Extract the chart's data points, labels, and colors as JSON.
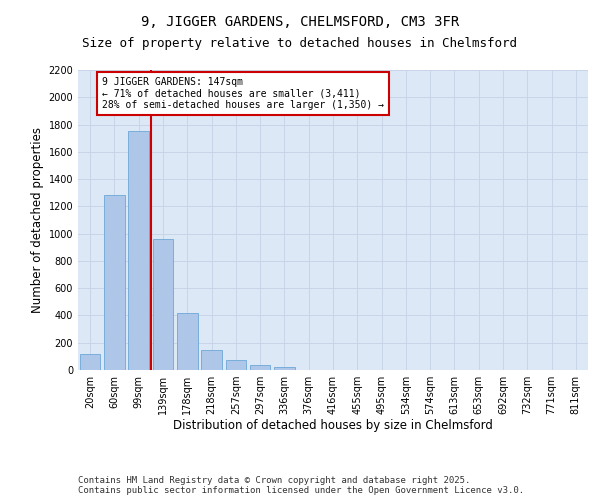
{
  "title_line1": "9, JIGGER GARDENS, CHELMSFORD, CM3 3FR",
  "title_line2": "Size of property relative to detached houses in Chelmsford",
  "xlabel": "Distribution of detached houses by size in Chelmsford",
  "ylabel": "Number of detached properties",
  "categories": [
    "20sqm",
    "60sqm",
    "99sqm",
    "139sqm",
    "178sqm",
    "218sqm",
    "257sqm",
    "297sqm",
    "336sqm",
    "376sqm",
    "416sqm",
    "455sqm",
    "495sqm",
    "534sqm",
    "574sqm",
    "613sqm",
    "653sqm",
    "692sqm",
    "732sqm",
    "771sqm",
    "811sqm"
  ],
  "values": [
    120,
    1280,
    1750,
    960,
    415,
    150,
    75,
    35,
    20,
    0,
    0,
    0,
    0,
    0,
    0,
    0,
    0,
    0,
    0,
    0,
    0
  ],
  "bar_color": "#aec6e8",
  "bar_edge_color": "#5a9fd4",
  "grid_color": "#c8d4e8",
  "background_color": "#dce8f5",
  "vline_color": "#cc0000",
  "annotation_line1": "9 JIGGER GARDENS: 147sqm",
  "annotation_line2": "← 71% of detached houses are smaller (3,411)",
  "annotation_line3": "28% of semi-detached houses are larger (1,350) →",
  "annotation_box_color": "#cc0000",
  "ylim": [
    0,
    2200
  ],
  "yticks": [
    0,
    200,
    400,
    600,
    800,
    1000,
    1200,
    1400,
    1600,
    1800,
    2000,
    2200
  ],
  "footer_text": "Contains HM Land Registry data © Crown copyright and database right 2025.\nContains public sector information licensed under the Open Government Licence v3.0.",
  "title_fontsize": 10,
  "subtitle_fontsize": 9,
  "axis_label_fontsize": 8.5,
  "tick_fontsize": 7,
  "footer_fontsize": 6.5
}
